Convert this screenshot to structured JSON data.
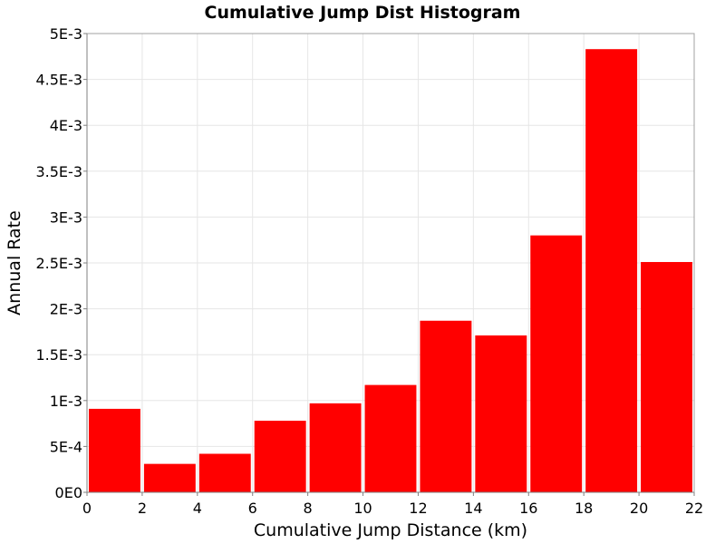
{
  "chart_data": {
    "type": "bar",
    "title": "Cumulative Jump Dist Histogram",
    "xlabel": "Cumulative Jump Distance (km)",
    "ylabel": "Annual Rate",
    "xlim": [
      0,
      22
    ],
    "ylim": [
      0,
      0.005
    ],
    "x_ticks": [
      0,
      2,
      4,
      6,
      8,
      10,
      12,
      14,
      16,
      18,
      20,
      22
    ],
    "x_tick_labels": [
      "0",
      "2",
      "4",
      "6",
      "8",
      "10",
      "12",
      "14",
      "16",
      "18",
      "20",
      "22"
    ],
    "y_ticks": [
      0,
      0.0005,
      0.001,
      0.0015,
      0.002,
      0.0025,
      0.003,
      0.0035,
      0.004,
      0.0045,
      0.005
    ],
    "y_tick_labels": [
      "0E0",
      "5E-4",
      "1E-3",
      "1.5E-3",
      "2E-3",
      "2.5E-3",
      "3E-3",
      "3.5E-3",
      "4E-3",
      "4.5E-3",
      "5E-3"
    ],
    "bin_width": 2,
    "bins": [
      {
        "x_start": 0,
        "x_end": 2,
        "value": 0.00091
      },
      {
        "x_start": 2,
        "x_end": 4,
        "value": 0.00031
      },
      {
        "x_start": 4,
        "x_end": 6,
        "value": 0.00042
      },
      {
        "x_start": 6,
        "x_end": 8,
        "value": 0.00078
      },
      {
        "x_start": 8,
        "x_end": 10,
        "value": 0.00097
      },
      {
        "x_start": 10,
        "x_end": 12,
        "value": 0.00117
      },
      {
        "x_start": 12,
        "x_end": 14,
        "value": 0.00187
      },
      {
        "x_start": 14,
        "x_end": 16,
        "value": 0.00171
      },
      {
        "x_start": 16,
        "x_end": 18,
        "value": 0.0028
      },
      {
        "x_start": 18,
        "x_end": 20,
        "value": 0.00483
      },
      {
        "x_start": 20,
        "x_end": 22,
        "value": 0.00251
      }
    ],
    "bar_color": "#ff0000",
    "grid": true,
    "legend": "none"
  }
}
